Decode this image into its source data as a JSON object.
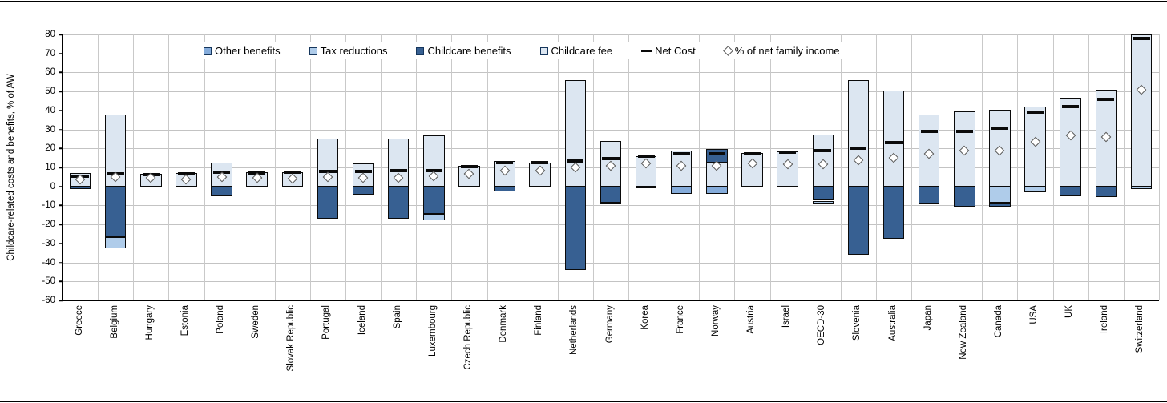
{
  "figure": {
    "ylabel": "Childcare-related costs and benefits, % of AW"
  },
  "chart_data": {
    "type": "bar",
    "stacked": true,
    "title": "",
    "xlabel": "",
    "ylabel": "Childcare-related costs and benefits, % of AW",
    "unit": "% of AW",
    "ylim": [
      -60,
      80
    ],
    "yticks": [
      80,
      70,
      60,
      50,
      40,
      30,
      20,
      10,
      0,
      -10,
      -20,
      -30,
      -40,
      -50,
      -60
    ],
    "grid": true,
    "legend_position": "top-inside",
    "colors": {
      "other_benefits": "#85ACDB",
      "tax_reductions": "#AFCCEA",
      "childcare_benefits": "#376092",
      "childcare_fee": "#DCE6F1",
      "net_cost": "#0a0a0a",
      "pct_net_family_income": "#ffffff"
    },
    "legend": [
      {
        "key": "other_benefits",
        "label": "Other benefits",
        "swatch": "square"
      },
      {
        "key": "tax_reductions",
        "label": "Tax reductions",
        "swatch": "square"
      },
      {
        "key": "childcare_benefits",
        "label": "Childcare benefits",
        "swatch": "square"
      },
      {
        "key": "childcare_fee",
        "label": "Childcare fee",
        "swatch": "square"
      },
      {
        "key": "net_cost",
        "label": "Net Cost",
        "swatch": "dash"
      },
      {
        "key": "pct_net_family_income",
        "label": "% of net family income",
        "swatch": "diamond"
      }
    ],
    "countries": [
      {
        "name": "Greece",
        "segments": [
          {
            "type": "childcare_fee",
            "value": 7
          },
          {
            "type": "childcare_benefits",
            "value": -1.5
          }
        ],
        "net_cost": 5.5,
        "pct_net_family_income": 3.5
      },
      {
        "name": "Belgium",
        "segments": [
          {
            "type": "childcare_fee",
            "value": 38
          },
          {
            "type": "childcare_benefits",
            "value": -26.5
          },
          {
            "type": "tax_reductions",
            "value": -6
          }
        ],
        "net_cost": 6.5,
        "pct_net_family_income": 5
      },
      {
        "name": "Hungary",
        "segments": [
          {
            "type": "childcare_fee",
            "value": 6.5
          }
        ],
        "net_cost": 6,
        "pct_net_family_income": 4.5
      },
      {
        "name": "Estonia",
        "segments": [
          {
            "type": "childcare_fee",
            "value": 7
          }
        ],
        "net_cost": 6.5,
        "pct_net_family_income": 3.5
      },
      {
        "name": "Poland",
        "segments": [
          {
            "type": "childcare_fee",
            "value": 12.5
          },
          {
            "type": "childcare_benefits",
            "value": -5
          }
        ],
        "net_cost": 7.5,
        "pct_net_family_income": 5
      },
      {
        "name": "Sweden",
        "segments": [
          {
            "type": "childcare_fee",
            "value": 7.5
          }
        ],
        "net_cost": 7,
        "pct_net_family_income": 4.5
      },
      {
        "name": "Slovak Republic",
        "segments": [
          {
            "type": "childcare_fee",
            "value": 7.5
          }
        ],
        "net_cost": 7.5,
        "pct_net_family_income": 4
      },
      {
        "name": "Portugal",
        "segments": [
          {
            "type": "childcare_fee",
            "value": 25
          },
          {
            "type": "childcare_benefits",
            "value": -17
          }
        ],
        "net_cost": 8,
        "pct_net_family_income": 5
      },
      {
        "name": "Iceland",
        "segments": [
          {
            "type": "childcare_fee",
            "value": 12
          },
          {
            "type": "childcare_benefits",
            "value": -4.5
          }
        ],
        "net_cost": 8,
        "pct_net_family_income": 4.5
      },
      {
        "name": "Spain",
        "segments": [
          {
            "type": "childcare_fee",
            "value": 25
          },
          {
            "type": "childcare_benefits",
            "value": -17
          }
        ],
        "net_cost": 8.5,
        "pct_net_family_income": 4.5
      },
      {
        "name": "Luxembourg",
        "segments": [
          {
            "type": "childcare_fee",
            "value": 27
          },
          {
            "type": "childcare_benefits",
            "value": -14.5
          },
          {
            "type": "tax_reductions",
            "value": -3.5
          }
        ],
        "net_cost": 8.5,
        "pct_net_family_income": 5.5
      },
      {
        "name": "Czech Republic",
        "segments": [
          {
            "type": "childcare_fee",
            "value": 11
          }
        ],
        "net_cost": 10.5,
        "pct_net_family_income": 6.5
      },
      {
        "name": "Denmark",
        "segments": [
          {
            "type": "childcare_fee",
            "value": 13.5
          },
          {
            "type": "childcare_benefits",
            "value": -2.5
          }
        ],
        "net_cost": 12.5,
        "pct_net_family_income": 8.5
      },
      {
        "name": "Finland",
        "segments": [
          {
            "type": "childcare_fee",
            "value": 12.5
          }
        ],
        "net_cost": 12.5,
        "pct_net_family_income": 8.5
      },
      {
        "name": "Netherlands",
        "segments": [
          {
            "type": "childcare_fee",
            "value": 56
          },
          {
            "type": "childcare_benefits",
            "value": -44
          }
        ],
        "net_cost": 13.5,
        "pct_net_family_income": 10
      },
      {
        "name": "Germany",
        "segments": [
          {
            "type": "childcare_fee",
            "value": 24
          },
          {
            "type": "childcare_benefits",
            "value": -8.5
          },
          {
            "type": "tax_reductions",
            "value": -1
          }
        ],
        "net_cost": 14.5,
        "pct_net_family_income": 11
      },
      {
        "name": "Korea",
        "segments": [
          {
            "type": "childcare_fee",
            "value": 16
          },
          {
            "type": "tax_reductions",
            "value": -1
          }
        ],
        "net_cost": 16,
        "pct_net_family_income": 12
      },
      {
        "name": "France",
        "segments": [
          {
            "type": "childcare_fee",
            "value": 19
          },
          {
            "type": "other_benefits",
            "value": -4
          }
        ],
        "net_cost": 17,
        "pct_net_family_income": 11
      },
      {
        "name": "Norway",
        "segments": [
          {
            "type": "childcare_fee",
            "value": 12.5
          },
          {
            "type": "childcare_benefits",
            "value": 7
          },
          {
            "type": "other_benefits",
            "value": -4
          }
        ],
        "net_cost": 17,
        "pct_net_family_income": 11
      },
      {
        "name": "Austria",
        "segments": [
          {
            "type": "childcare_fee",
            "value": 17.5
          }
        ],
        "net_cost": 17,
        "pct_net_family_income": 12
      },
      {
        "name": "Israel",
        "segments": [
          {
            "type": "childcare_fee",
            "value": 18.5
          }
        ],
        "net_cost": 18,
        "pct_net_family_income": 11.5
      },
      {
        "name": "OECD-30",
        "segments": [
          {
            "type": "childcare_fee",
            "value": 27.5
          },
          {
            "type": "childcare_benefits",
            "value": -7.5
          },
          {
            "type": "tax_reductions",
            "value": -1.5
          }
        ],
        "net_cost": 19,
        "pct_net_family_income": 11.5
      },
      {
        "name": "Slovenia",
        "segments": [
          {
            "type": "childcare_fee",
            "value": 56
          },
          {
            "type": "childcare_benefits",
            "value": -36
          }
        ],
        "net_cost": 20,
        "pct_net_family_income": 14
      },
      {
        "name": "Australia",
        "segments": [
          {
            "type": "childcare_fee",
            "value": 50.5
          },
          {
            "type": "childcare_benefits",
            "value": -27.5
          }
        ],
        "net_cost": 23,
        "pct_net_family_income": 15
      },
      {
        "name": "Japan",
        "segments": [
          {
            "type": "childcare_fee",
            "value": 38
          },
          {
            "type": "childcare_benefits",
            "value": -9
          }
        ],
        "net_cost": 29,
        "pct_net_family_income": 17
      },
      {
        "name": "New Zealand",
        "segments": [
          {
            "type": "childcare_fee",
            "value": 39.5
          },
          {
            "type": "childcare_benefits",
            "value": -10.5
          }
        ],
        "net_cost": 29,
        "pct_net_family_income": 19
      },
      {
        "name": "Canada",
        "segments": [
          {
            "type": "childcare_fee",
            "value": 40.5
          },
          {
            "type": "tax_reductions",
            "value": -8.5
          },
          {
            "type": "childcare_benefits",
            "value": -2
          }
        ],
        "net_cost": 30.5,
        "pct_net_family_income": 19
      },
      {
        "name": "USA",
        "segments": [
          {
            "type": "childcare_fee",
            "value": 42
          },
          {
            "type": "tax_reductions",
            "value": -3
          }
        ],
        "net_cost": 39,
        "pct_net_family_income": 23.5
      },
      {
        "name": "UK",
        "segments": [
          {
            "type": "childcare_fee",
            "value": 46.5
          },
          {
            "type": "childcare_benefits",
            "value": -5
          }
        ],
        "net_cost": 42,
        "pct_net_family_income": 27
      },
      {
        "name": "Ireland",
        "segments": [
          {
            "type": "childcare_fee",
            "value": 51
          },
          {
            "type": "childcare_benefits",
            "value": -5.5
          }
        ],
        "net_cost": 46,
        "pct_net_family_income": 26
      },
      {
        "name": "Switzerland",
        "segments": [
          {
            "type": "childcare_fee",
            "value": 80
          },
          {
            "type": "tax_reductions",
            "value": -1.5
          }
        ],
        "net_cost": 78,
        "pct_net_family_income": 51
      }
    ]
  }
}
